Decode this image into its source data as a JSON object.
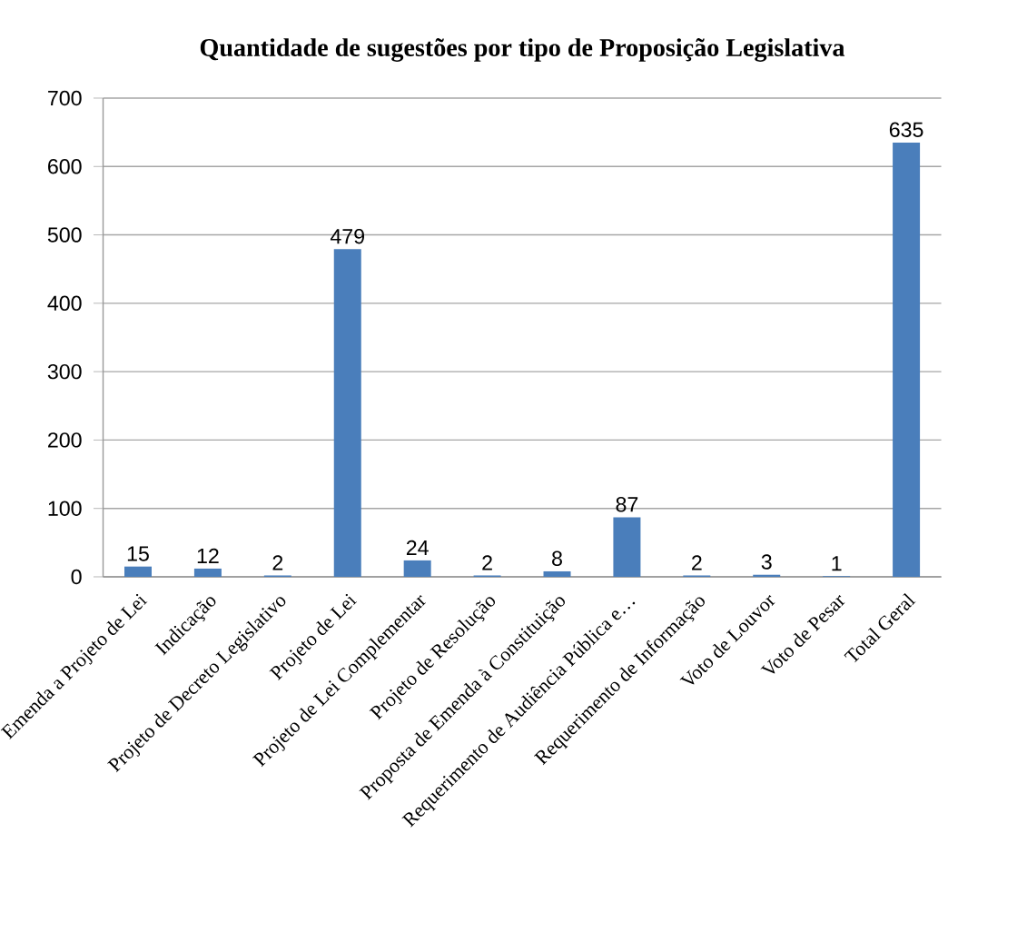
{
  "chart_data": {
    "type": "bar",
    "title": "Quantidade de sugestões por tipo de Proposição Legislativa",
    "categories": [
      "Emenda a Projeto de Lei",
      "Indicação",
      "Projeto de Decreto Legislativo",
      "Projeto de Lei",
      "Projeto de Lei Complementar",
      "Projeto de Resolução",
      "Proposta de Emenda à Constituição",
      "Requerimento de Audiência Pública e…",
      "Requerimento de Informação",
      "Voto de Louvor",
      "Voto de Pesar",
      "Total Geral"
    ],
    "values": [
      15,
      12,
      2,
      479,
      24,
      2,
      8,
      87,
      2,
      3,
      1,
      635
    ],
    "color": "#4a7ebb",
    "ylim": [
      0,
      700
    ],
    "yticks": [
      0,
      100,
      200,
      300,
      400,
      500,
      600,
      700
    ],
    "grid": "y",
    "data_labels": true
  }
}
